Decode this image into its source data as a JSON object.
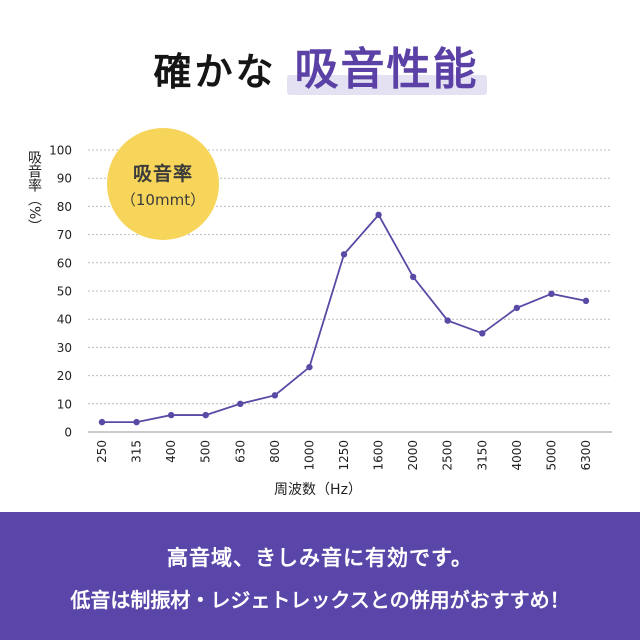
{
  "headline": {
    "plain": "確かな",
    "accent": "吸音性能"
  },
  "badge": {
    "line1": "吸音率",
    "line2": "（10mmt）"
  },
  "footer": {
    "line1": "高音域、きしみ音に有効です。",
    "line2": "低音は制振材・レジェトレックスとの併用がおすすめ！"
  },
  "colors": {
    "accent": "#5b41a6",
    "line": "#5a4aa6",
    "badge": "#f7d55a",
    "footer_bg": "#5a45a8",
    "highlight": "#e4e1f2"
  },
  "chart_data": {
    "type": "line",
    "ylabel": "吸音率（%）",
    "xlabel": "周波数（Hz）",
    "categories": [
      "250",
      "315",
      "400",
      "500",
      "630",
      "800",
      "1000",
      "1250",
      "1600",
      "2000",
      "2500",
      "3150",
      "4000",
      "5000",
      "6300"
    ],
    "values": [
      3.5,
      3.5,
      6,
      6,
      10,
      13,
      23,
      63,
      77,
      55,
      39.5,
      35,
      44,
      49,
      46.5
    ],
    "ylim": [
      0,
      100
    ],
    "yticks": [
      0,
      10,
      20,
      30,
      40,
      50,
      60,
      70,
      80,
      90,
      100
    ],
    "grid": "horizontal-dashed"
  }
}
